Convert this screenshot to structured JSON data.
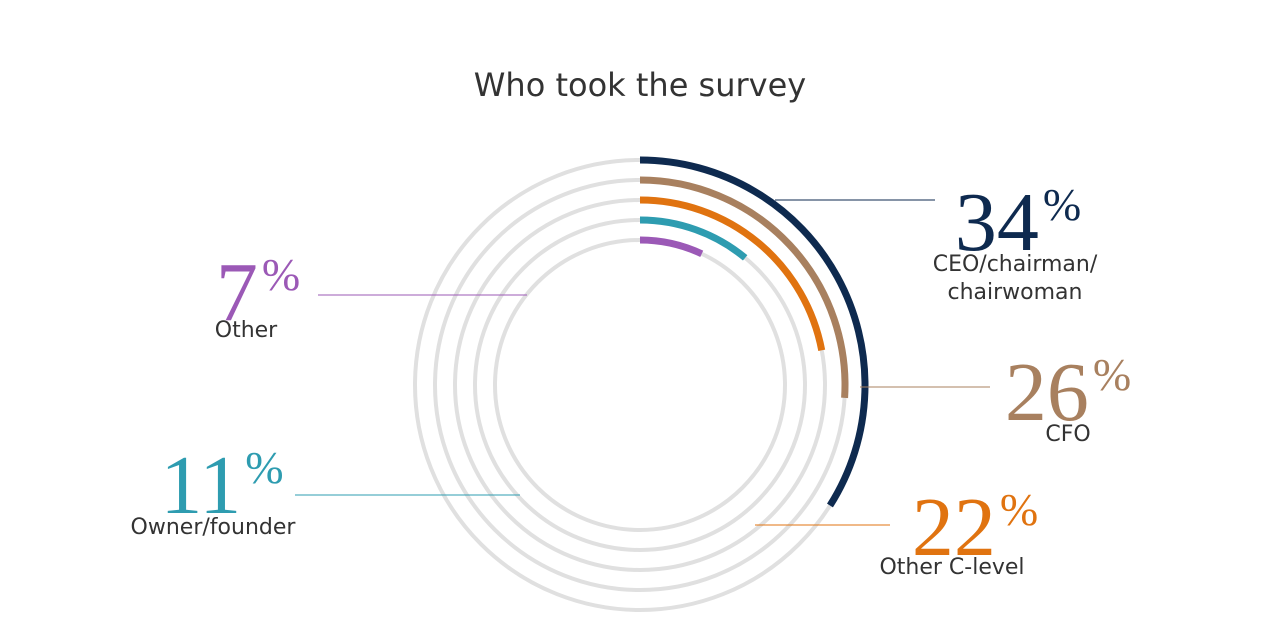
{
  "chart_data": {
    "type": "radial_bar",
    "title": "Who took the survey",
    "categories": [
      "CEO/chairman/ chairwoman",
      "CFO",
      "Other C-level",
      "Owner/founder",
      "Other"
    ],
    "values": [
      34,
      26,
      22,
      11,
      7
    ],
    "value_labels": [
      "34%",
      "26%",
      "22%",
      "11%",
      "7%"
    ],
    "colors": [
      "#0e2a4f",
      "#a8805f",
      "#e07310",
      "#2e9cb0",
      "#9b59b6"
    ],
    "ylim": [
      0,
      100
    ]
  }
}
